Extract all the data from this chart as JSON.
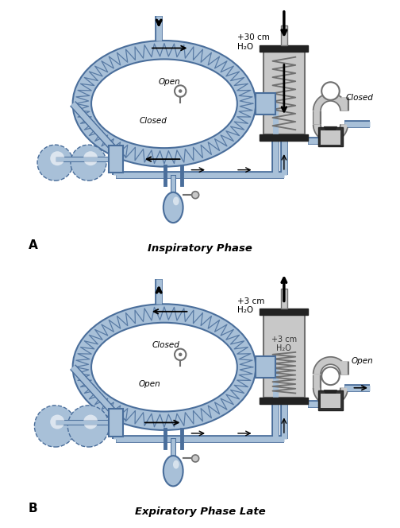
{
  "title_A": "Inspiratory Phase",
  "title_B": "Expiratory Phase Late",
  "label_A": "A",
  "label_B": "B",
  "bg_color": "#ffffff",
  "blue_light": "#a8c0d8",
  "blue_mid": "#7a9bbe",
  "blue_dark": "#4a6e9b",
  "gray_cyl": "#c8c8c8",
  "gray_dark": "#707070",
  "black": "#000000"
}
